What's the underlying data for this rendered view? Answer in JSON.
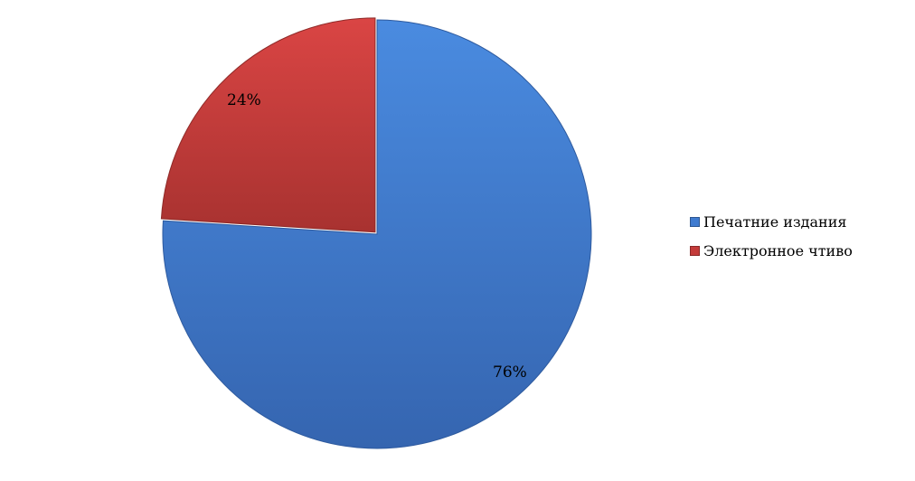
{
  "chart_data": {
    "type": "pie",
    "title": "",
    "start_angle": "top, clockwise",
    "slices": [
      {
        "name": "Печатние издания",
        "value": 76,
        "label": "76%",
        "color": "#3F7BD0"
      },
      {
        "name": "Электронное чтиво",
        "value": 24,
        "label": "24%",
        "color": "#C43B3A",
        "exploded": true
      }
    ],
    "legend": {
      "placement": "right"
    }
  }
}
